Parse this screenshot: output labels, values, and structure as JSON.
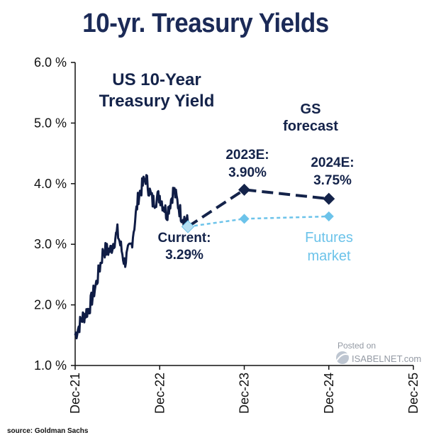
{
  "title": "10-yr. Treasury Yields",
  "source": "source: Goldman Sachs",
  "colors": {
    "yield_line": "#0f1c45",
    "gs_forecast": "#14234a",
    "futures": "#6cc3ea",
    "title": "#1b2a57"
  },
  "chart_data": {
    "type": "line",
    "title": "US 10-Year Treasury Yield",
    "xlabel": "",
    "ylabel": "",
    "x_ticks": [
      "Dec-21",
      "Dec-22",
      "Dec-23",
      "Dec-24",
      "Dec-25"
    ],
    "y_ticks": [
      "1.0 %",
      "2.0 %",
      "3.0 %",
      "4.0 %",
      "5.0 %",
      "6.0 %"
    ],
    "ylim": [
      1.0,
      6.0
    ],
    "xlim": [
      "2021-12",
      "2025-12"
    ],
    "grid": false,
    "series": [
      {
        "name": "",
        "style": "solid",
        "x": [
          "2021-12",
          "2022-01",
          "2022-02",
          "2022-03",
          "2022-04",
          "2022-05",
          "2022-06",
          "2022-07",
          "2022-08",
          "2022-09",
          "2022-10",
          "2022-11",
          "2022-12",
          "2023-01",
          "2023-02",
          "2023-03",
          "2023-04"
        ],
        "y": [
          1.5,
          1.78,
          1.95,
          2.35,
          2.9,
          2.9,
          3.2,
          2.7,
          3.0,
          3.8,
          4.1,
          3.7,
          3.8,
          3.5,
          3.9,
          3.5,
          3.35
        ]
      },
      {
        "name": "GS forecast",
        "style": "dashed",
        "x": [
          "2023-04",
          "2023-12",
          "2024-12"
        ],
        "y": [
          3.29,
          3.9,
          3.75
        ]
      },
      {
        "name": "Futures market",
        "style": "dashed",
        "x": [
          "2023-04",
          "2023-12",
          "2024-12"
        ],
        "y": [
          3.29,
          3.42,
          3.46
        ]
      }
    ],
    "annotations": {
      "chart_label_line1": "US 10-Year",
      "chart_label_line2": "Treasury Yield",
      "gs_line1": "GS",
      "gs_line2": "forecast",
      "e2023_line1": "2023E:",
      "e2023_line2": "3.90%",
      "e2024_line1": "2024E:",
      "e2024_line2": "3.75%",
      "current_line1": "Current:",
      "current_line2": "3.29%",
      "futures_line1": "Futures",
      "futures_line2": "market"
    }
  },
  "watermark": {
    "line1": "Posted on",
    "line2": "ISABELNET.com"
  }
}
